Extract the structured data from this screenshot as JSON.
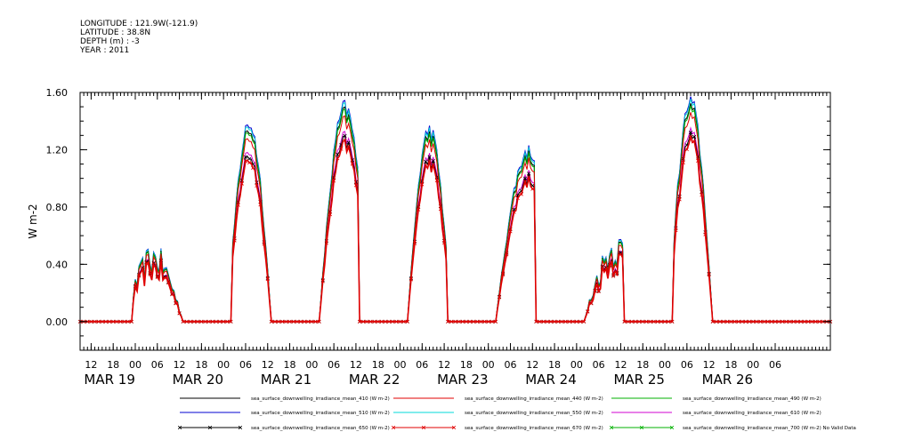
{
  "header": {
    "longitude": "LONGITUDE : 121.9W(-121.9)",
    "latitude": "LATITUDE : 38.8N",
    "depth": "DEPTH (m) : -3",
    "year": "YEAR : 2011"
  },
  "chart_data": {
    "type": "line",
    "title": "",
    "xlabel": "",
    "ylabel": "W m-2",
    "ylim": [
      -0.2,
      1.6
    ],
    "yticks": [
      0.0,
      0.4,
      0.8,
      1.2,
      1.6
    ],
    "ytick_labels": [
      "0.00",
      "0.40",
      "0.80",
      "1.20",
      "1.60"
    ],
    "xlim_hours": [
      0,
      204
    ],
    "hour_tick_labels": [
      "12",
      "18",
      "00",
      "06",
      "12",
      "18",
      "00",
      "06",
      "12",
      "18",
      "00",
      "06",
      "12",
      "18",
      "00",
      "06",
      "12",
      "18",
      "00",
      "06",
      "12",
      "18",
      "00",
      "06",
      "12",
      "18",
      "00",
      "06",
      "12",
      "18",
      "00",
      "06"
    ],
    "day_labels": [
      "MAR 19",
      "MAR 20",
      "MAR 21",
      "MAR 22",
      "MAR 23",
      "MAR 24",
      "MAR 25",
      "MAR 26"
    ],
    "grid": false,
    "legend_position": "bottom",
    "time_origin": "MAR 19 09:00",
    "peaks": [
      {
        "day": "MAR 19",
        "start": 14,
        "end": 28,
        "max": 0.52,
        "max_hour": 20
      },
      {
        "day": "MAR 20",
        "start": 41,
        "end": 52,
        "max": 1.38,
        "max_hour": 46
      },
      {
        "day": "MAR 21",
        "start": 65,
        "end": 76,
        "max": 1.49,
        "max_hour": 72
      },
      {
        "day": "MAR 22",
        "start": 89,
        "end": 100,
        "max": 1.34,
        "max_hour": 95
      },
      {
        "day": "MAR 23",
        "start": 113,
        "end": 124,
        "max": 1.19,
        "max_hour": 122
      },
      {
        "day": "MAR 24",
        "start": 137,
        "end": 148,
        "max": 0.6,
        "max_hour": 146
      },
      {
        "day": "MAR 25",
        "start": 161,
        "end": 172,
        "max": 1.53,
        "max_hour": 166
      }
    ],
    "series": [
      {
        "name": "sea_surface_downwelling_irradiance_mean_410 (W m-2)",
        "color": "#000000",
        "scale": 0.97,
        "marker": "none"
      },
      {
        "name": "sea_surface_downwelling_irradiance_mean_440 (W m-2)",
        "color": "#e00000",
        "scale": 0.93,
        "marker": "none"
      },
      {
        "name": "sea_surface_downwelling_irradiance_mean_490 (W m-2)",
        "color": "#00b000",
        "scale": 0.96,
        "marker": "none"
      },
      {
        "name": "sea_surface_downwelling_irradiance_mean_510 (W m-2)",
        "color": "#0000d0",
        "scale": 1.0,
        "marker": "none"
      },
      {
        "name": "sea_surface_downwelling_irradiance_mean_550 (W m-2)",
        "color": "#00d8d8",
        "scale": 0.99,
        "marker": "none"
      },
      {
        "name": "sea_surface_downwelling_irradiance_mean_610 (W m-2)",
        "color": "#d000d0",
        "scale": 0.86,
        "marker": "none"
      },
      {
        "name": "sea_surface_downwelling_irradiance_mean_650 (W m-2)",
        "color": "#000000",
        "scale": 0.84,
        "marker": "x"
      },
      {
        "name": "sea_surface_downwelling_irradiance_mean_670 (W m-2)",
        "color": "#e00000",
        "scale": 0.82,
        "marker": "x"
      },
      {
        "name": "sea_surface_downwelling_irradiance_mean_700 (W m-2) No Valid Data",
        "color": "#00b000",
        "scale": 0,
        "marker": "x"
      }
    ]
  }
}
